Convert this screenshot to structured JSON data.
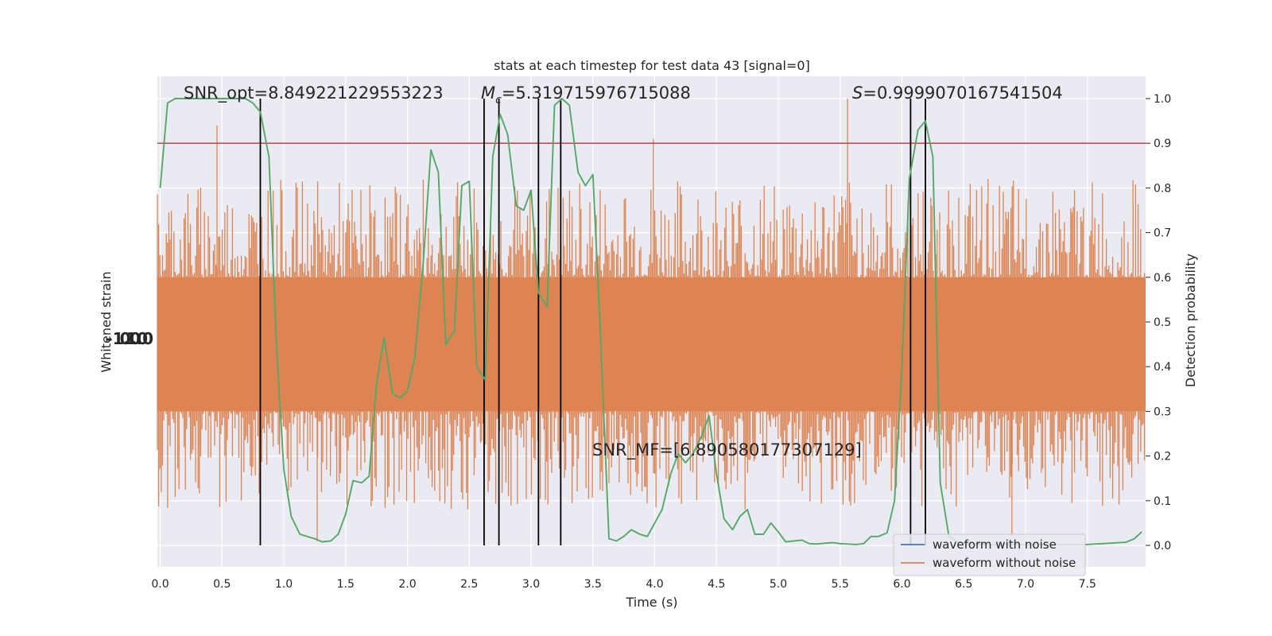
{
  "chart_data": {
    "type": "line",
    "title": "stats at each timestep for test data 43 [signal=0]",
    "xlabel": "Time (s)",
    "ylabel_left": "Whitened strain",
    "ylabel_right": "Detection probability",
    "xlim": [
      0.0,
      8.0
    ],
    "ylim_right": [
      -0.048,
      1.048
    ],
    "x_ticks": [
      "0.0",
      "0.5",
      "1.0",
      "1.5",
      "2.0",
      "2.5",
      "3.0",
      "3.5",
      "4.0",
      "4.5",
      "5.0",
      "5.5",
      "6.0",
      "6.5",
      "7.0",
      "7.5"
    ],
    "y_ticks_right": [
      "0.0",
      "0.1",
      "0.2",
      "0.3",
      "0.4",
      "0.5",
      "0.6",
      "0.7",
      "0.8",
      "0.9",
      "1.0"
    ],
    "left_tick_labels_overlapping": "-1.0 0.0 1.0",
    "grid": true,
    "background": "#eaeaf2",
    "threshold": {
      "value": 0.9,
      "color": "#c44e52"
    },
    "vlines": [
      0.81,
      2.62,
      2.74,
      3.06,
      3.24,
      6.07,
      6.19
    ],
    "annotations": {
      "snr_opt": "SNR_opt=8.849221229553223",
      "mc_symbol": "M",
      "mc_subscript": "c",
      "mc_value": "=5.319715976715088",
      "s_symbol": "S",
      "s_value": "=0.9999070167541504",
      "snr_mf": "SNR_MF=[6.890580177307129]"
    },
    "legend": {
      "placement": "lower-right",
      "entries": [
        {
          "label": "waveform with noise",
          "color": "#4c72b0"
        },
        {
          "label": "waveform without noise",
          "color": "#dd8452"
        }
      ]
    },
    "strain_band": {
      "color": "#dd8452",
      "core": [
        0.3,
        0.6
      ],
      "spike_range": [
        0.0,
        1.0
      ],
      "spike_peaks": [
        {
          "x": 0.46,
          "value": 0.94
        },
        {
          "x": 5.56,
          "value": 1.0
        },
        {
          "x": 1.27,
          "value": 0.01
        },
        {
          "x": 6.89,
          "value": 0.02
        },
        {
          "x": 3.99,
          "value": 0.91
        }
      ]
    },
    "series": [
      {
        "name": "",
        "color": "#55a868",
        "x": [
          0.0,
          0.06,
          0.12,
          0.19,
          0.25,
          0.31,
          0.38,
          0.44,
          0.5,
          0.56,
          0.63,
          0.69,
          0.75,
          0.81,
          0.88,
          0.94,
          1.0,
          1.06,
          1.13,
          1.19,
          1.25,
          1.31,
          1.38,
          1.44,
          1.5,
          1.56,
          1.63,
          1.69,
          1.75,
          1.81,
          1.88,
          1.94,
          2.0,
          2.06,
          2.13,
          2.19,
          2.25,
          2.31,
          2.38,
          2.44,
          2.5,
          2.56,
          2.63,
          2.69,
          2.75,
          2.81,
          2.88,
          2.94,
          3.0,
          3.06,
          3.13,
          3.19,
          3.25,
          3.31,
          3.38,
          3.44,
          3.5,
          3.56,
          3.63,
          3.69,
          3.75,
          3.81,
          3.88,
          3.94,
          4.0,
          4.06,
          4.13,
          4.19,
          4.25,
          4.31,
          4.38,
          4.44,
          4.5,
          4.56,
          4.63,
          4.69,
          4.75,
          4.81,
          4.88,
          4.94,
          5.0,
          5.06,
          5.13,
          5.19,
          5.25,
          5.31,
          5.38,
          5.44,
          5.5,
          5.56,
          5.63,
          5.69,
          5.75,
          5.81,
          5.88,
          5.94,
          6.0,
          6.06,
          6.13,
          6.19,
          6.25,
          6.31,
          6.38,
          6.44,
          6.5,
          6.56,
          6.63,
          6.69,
          6.75,
          6.81,
          6.88,
          6.94,
          7.0,
          7.06,
          7.13,
          7.19,
          7.25,
          7.31,
          7.38,
          7.44,
          7.5,
          7.56,
          7.63,
          7.69,
          7.75,
          7.81,
          7.88,
          7.94
        ],
        "values": [
          0.8,
          0.99,
          1.0,
          1.0,
          1.0,
          1.0,
          1.0,
          1.0,
          1.0,
          1.0,
          1.0,
          1.0,
          0.99,
          0.97,
          0.87,
          0.45,
          0.17,
          0.065,
          0.025,
          0.02,
          0.015,
          0.008,
          0.01,
          0.025,
          0.07,
          0.145,
          0.14,
          0.155,
          0.36,
          0.465,
          0.34,
          0.33,
          0.345,
          0.42,
          0.64,
          0.885,
          0.835,
          0.45,
          0.48,
          0.805,
          0.815,
          0.4,
          0.37,
          0.87,
          0.965,
          0.92,
          0.76,
          0.75,
          0.795,
          0.565,
          0.535,
          0.985,
          1.0,
          0.985,
          0.835,
          0.805,
          0.83,
          0.48,
          0.015,
          0.01,
          0.02,
          0.035,
          0.025,
          0.02,
          0.05,
          0.08,
          0.16,
          0.205,
          0.185,
          0.205,
          0.245,
          0.29,
          0.16,
          0.06,
          0.035,
          0.065,
          0.08,
          0.025,
          0.025,
          0.05,
          0.03,
          0.008,
          0.01,
          0.012,
          0.004,
          0.003,
          0.005,
          0.006,
          0.004,
          0.003,
          0.002,
          0.004,
          0.02,
          0.02,
          0.028,
          0.1,
          0.4,
          0.82,
          0.93,
          0.95,
          0.87,
          0.14,
          0.02,
          0.01,
          0.005,
          0.003,
          0.002,
          0.002,
          0.002,
          0.002,
          0.002,
          0.002,
          0.002,
          0.002,
          0.002,
          0.002,
          0.002,
          0.002,
          0.002,
          0.002,
          0.002,
          0.003,
          0.004,
          0.005,
          0.006,
          0.007,
          0.015,
          0.03
        ]
      }
    ]
  }
}
